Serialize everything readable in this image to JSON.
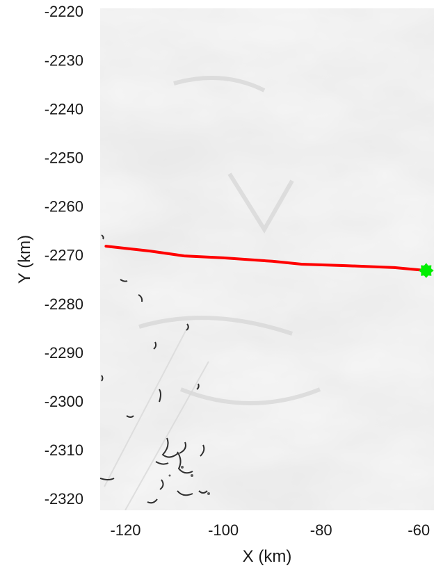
{
  "chart_data": {
    "type": "line",
    "background": "grayscale satellite image",
    "xlabel": "X (km)",
    "ylabel": "Y (km)",
    "xlim": [
      -125.2,
      -56.9
    ],
    "ylim": [
      -2322.4,
      -2219.4
    ],
    "x_ticks": [
      -120,
      -100,
      -80,
      -60
    ],
    "x_tick_labels": [
      "-120",
      "-100",
      "-80",
      "-60"
    ],
    "y_ticks": [
      -2220,
      -2230,
      -2240,
      -2250,
      -2260,
      -2270,
      -2280,
      -2290,
      -2300,
      -2310,
      -2320
    ],
    "y_tick_labels": [
      "-2220",
      "-2230",
      "-2240",
      "-2250",
      "-2260",
      "-2270",
      "-2280",
      "-2290",
      "-2300",
      "-2310",
      "-2320"
    ],
    "grid": false,
    "series": [
      {
        "color": "#ff0000",
        "x": [
          -124.0,
          -115.0,
          -108.0,
          -100.0,
          -90.0,
          -84.0,
          -75.0,
          -65.0,
          -58.5
        ],
        "y": [
          -2268.2,
          -2269.2,
          -2270.2,
          -2270.6,
          -2271.3,
          -2271.9,
          -2272.2,
          -2272.6,
          -2273.2
        ]
      }
    ],
    "marker": {
      "x": -58.5,
      "y": -2273.2,
      "color": "#00ee00",
      "shape": "diamond-star"
    }
  }
}
